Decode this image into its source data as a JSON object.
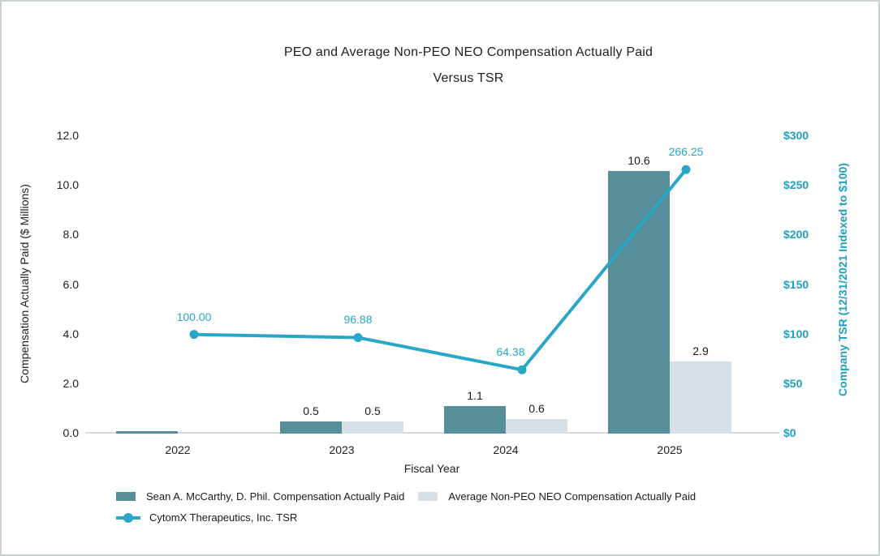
{
  "window": {
    "background": "#ffffff",
    "border_color": "#c8d5ce"
  },
  "chart": {
    "title_line1": "PEO and Average Non-PEO NEO Compensation Actually Paid",
    "title_line2": "Versus TSR"
  },
  "chart_data": {
    "type": "combo-bar-line",
    "title": "PEO and Average Non-PEO NEO Compensation Actually Paid Versus TSR",
    "categories": [
      "2022",
      "2023",
      "2024",
      "2025"
    ],
    "xlabel": "Fiscal Year",
    "ylabel_left": "Compensation Actually Paid ($ Millions)",
    "ylabel_right": "Company TSR (12/31/2021 Indexed to $100)",
    "ylim_left": [
      0,
      12
    ],
    "ylim_right": [
      0,
      300
    ],
    "left_ticks": [
      "0.0",
      "2.0",
      "4.0",
      "6.0",
      "8.0",
      "10.0",
      "12.0"
    ],
    "right_ticks": [
      "$0",
      "$50",
      "$100",
      "$150",
      "$200",
      "$250",
      "$300"
    ],
    "grid": false,
    "legend_position": "bottom-left",
    "series": [
      {
        "name": "Sean A. McCarthy, D. Phil. Compensation Actually Paid",
        "type": "bar",
        "axis": "left",
        "color": "#568f99",
        "values": [
          0.1,
          0.5,
          1.1,
          10.6
        ],
        "data_labels": [
          "",
          "0.5",
          "1.1",
          "10.6"
        ]
      },
      {
        "name": "Average Non-PEO NEO Compensation Actually Paid",
        "type": "bar",
        "axis": "left",
        "color": "#d6e0e6",
        "values": [
          0,
          0.5,
          0.6,
          2.9
        ],
        "data_labels": [
          "",
          "0.5",
          "0.6",
          "2.9"
        ]
      },
      {
        "name": "CytomX Therapeutics, Inc. TSR",
        "type": "line",
        "axis": "right",
        "color": "#2aa7c7",
        "values": [
          100.0,
          96.88,
          64.38,
          266.25
        ],
        "data_labels": [
          "100.00",
          "96.88",
          "64.38",
          "266.25"
        ]
      }
    ],
    "colors": {
      "peo_bar": "#568f99",
      "avg_bar": "#d6e0e6",
      "tsr_line": "#2aa7c7",
      "tsr_text": "#2aa7c7",
      "right_axis_text": "#1e9fc0",
      "axis_text": "#212121",
      "baseline": "#d9d9d9"
    }
  }
}
